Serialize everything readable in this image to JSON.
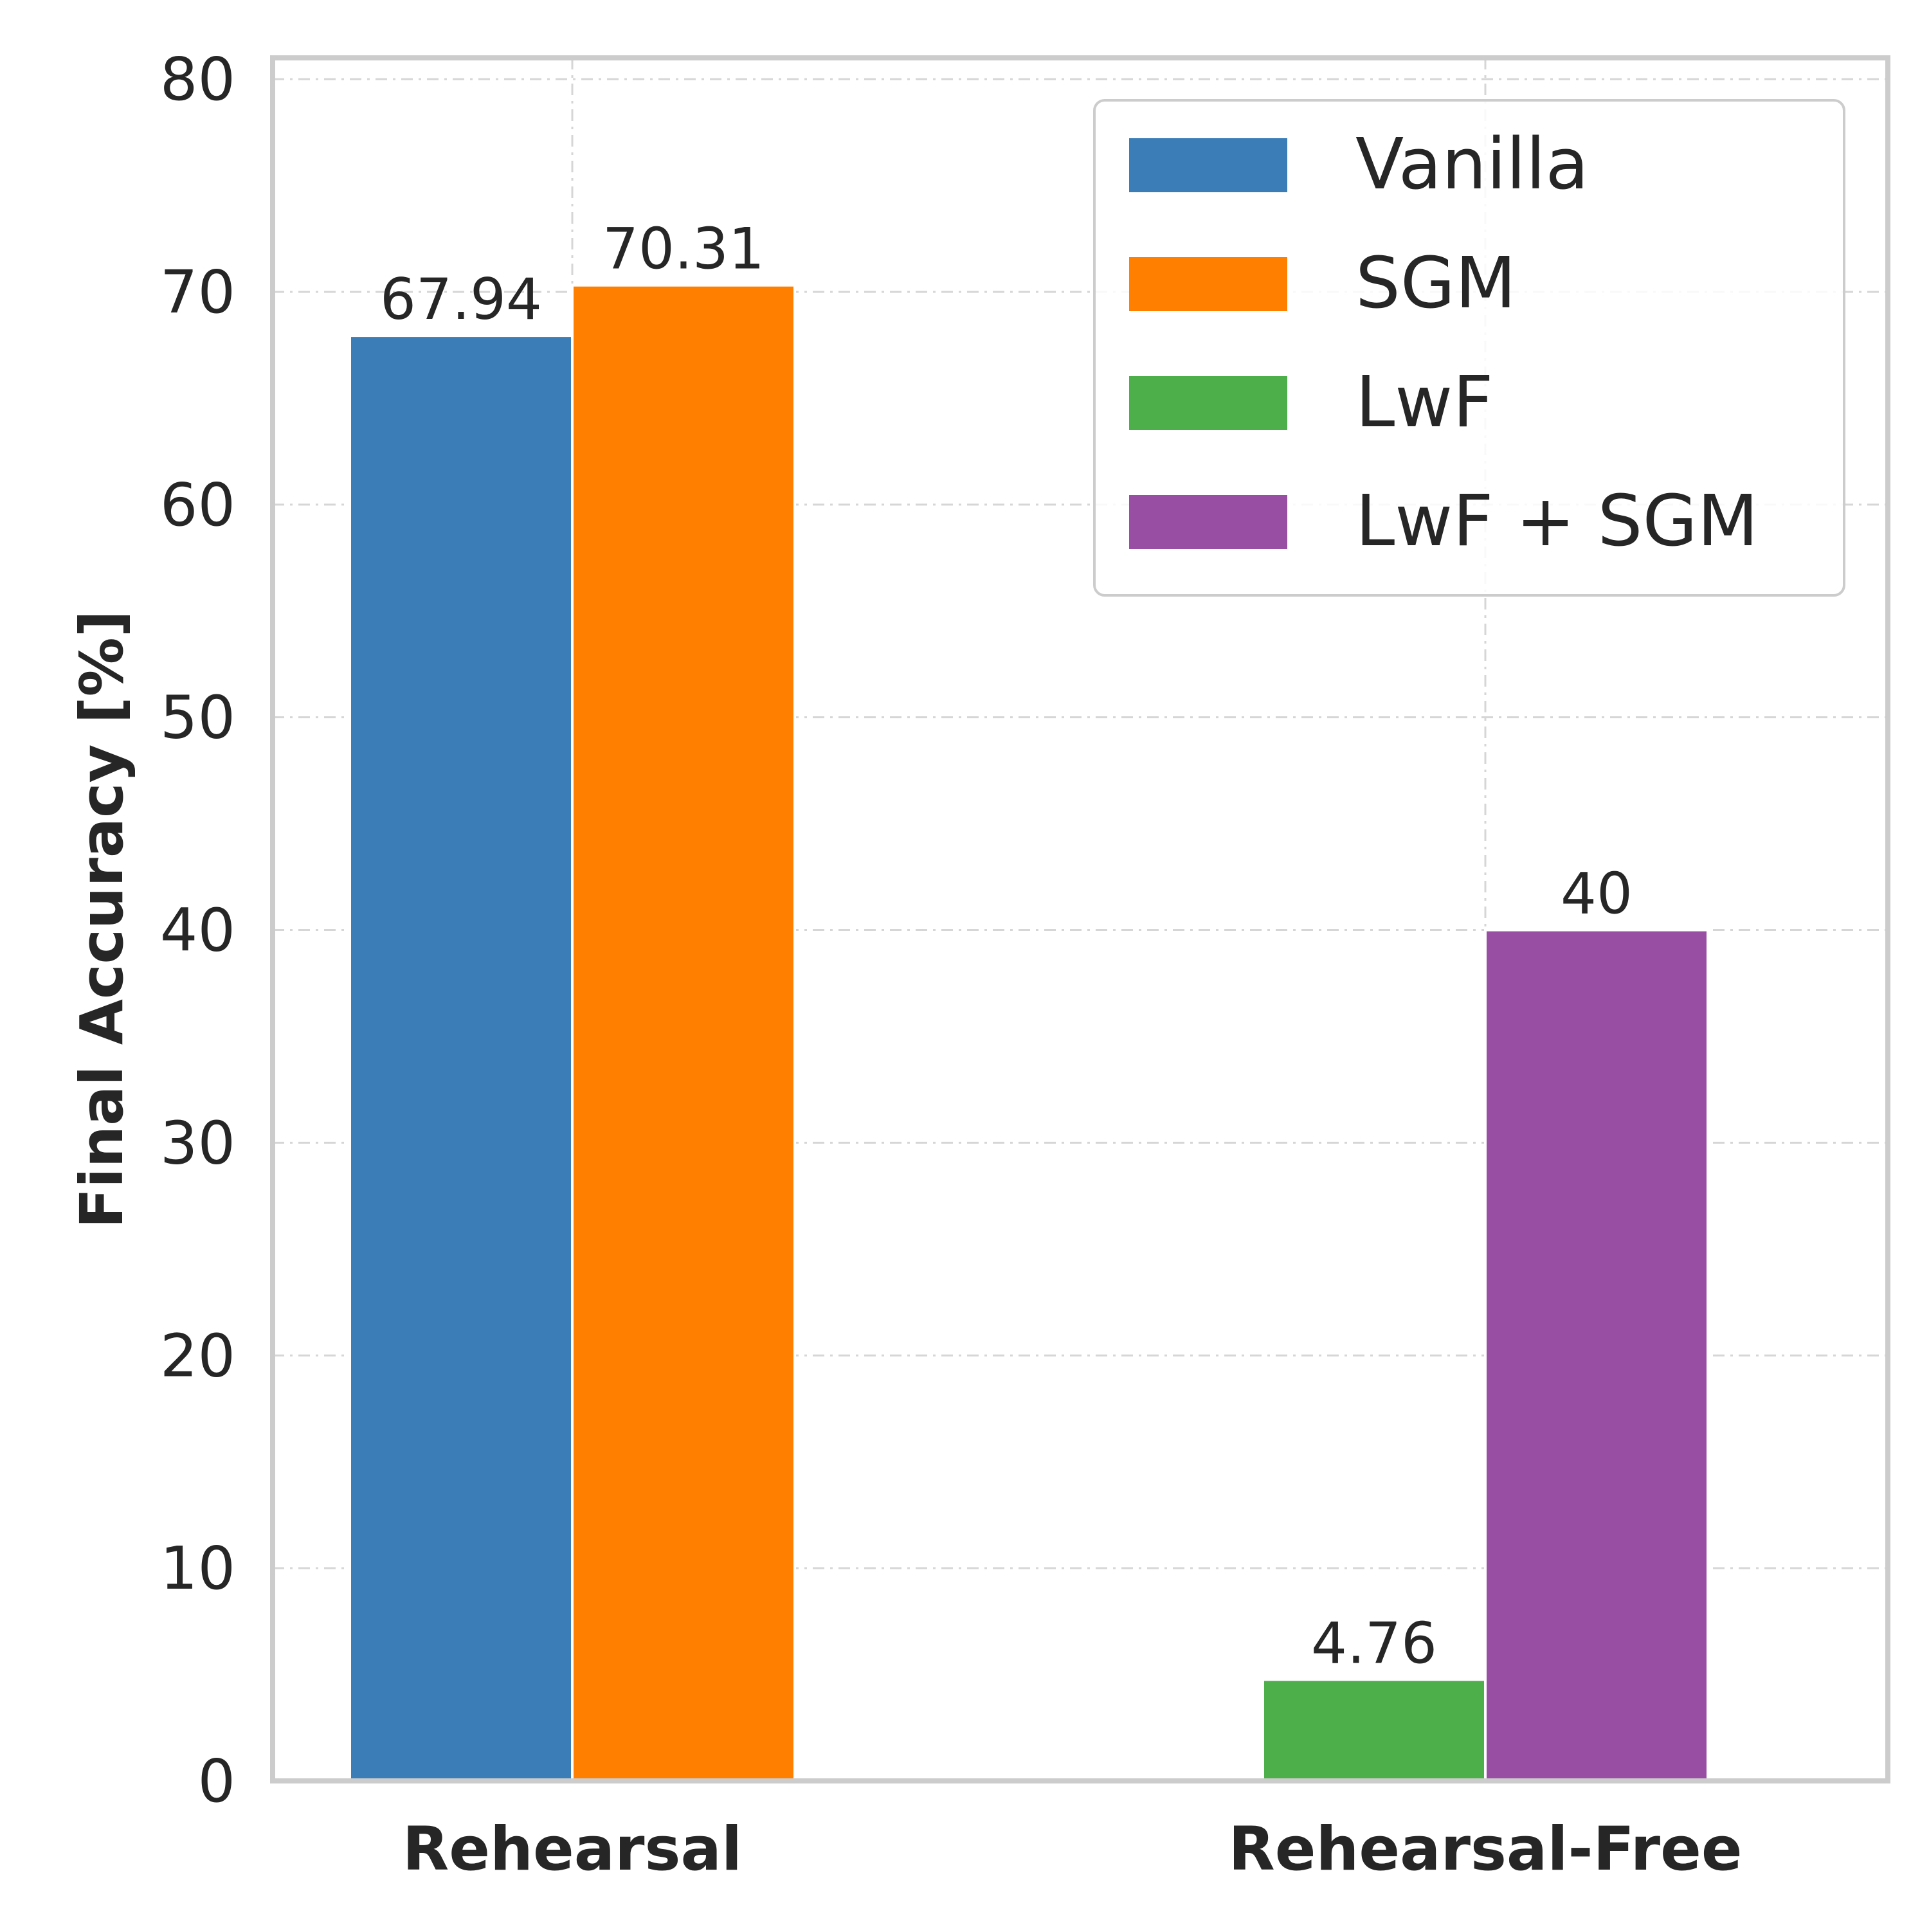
{
  "chart_data": {
    "type": "bar",
    "title": "",
    "xlabel": "",
    "ylabel": "Final Accuracy [%]",
    "ylim": [
      0,
      81
    ],
    "yticks": [
      0,
      10,
      20,
      30,
      40,
      50,
      60,
      70,
      80
    ],
    "grid": true,
    "legend_position": "top-right",
    "categories": [
      "Rehearsal",
      "Rehearsal-Free"
    ],
    "series": [
      {
        "name": "Vanilla",
        "color": "#3a7db7",
        "values": [
          67.94,
          null
        ],
        "labels": [
          "67.94",
          ""
        ]
      },
      {
        "name": "SGM",
        "color": "#ff7f00",
        "values": [
          70.31,
          null
        ],
        "labels": [
          "70.31",
          ""
        ]
      },
      {
        "name": "LwF",
        "color": "#4daf4a",
        "values": [
          null,
          4.76
        ],
        "labels": [
          "",
          "4.76"
        ]
      },
      {
        "name": "LwF + SGM",
        "color": "#984ea3",
        "values": [
          null,
          40
        ],
        "labels": [
          "",
          "40"
        ]
      }
    ]
  }
}
